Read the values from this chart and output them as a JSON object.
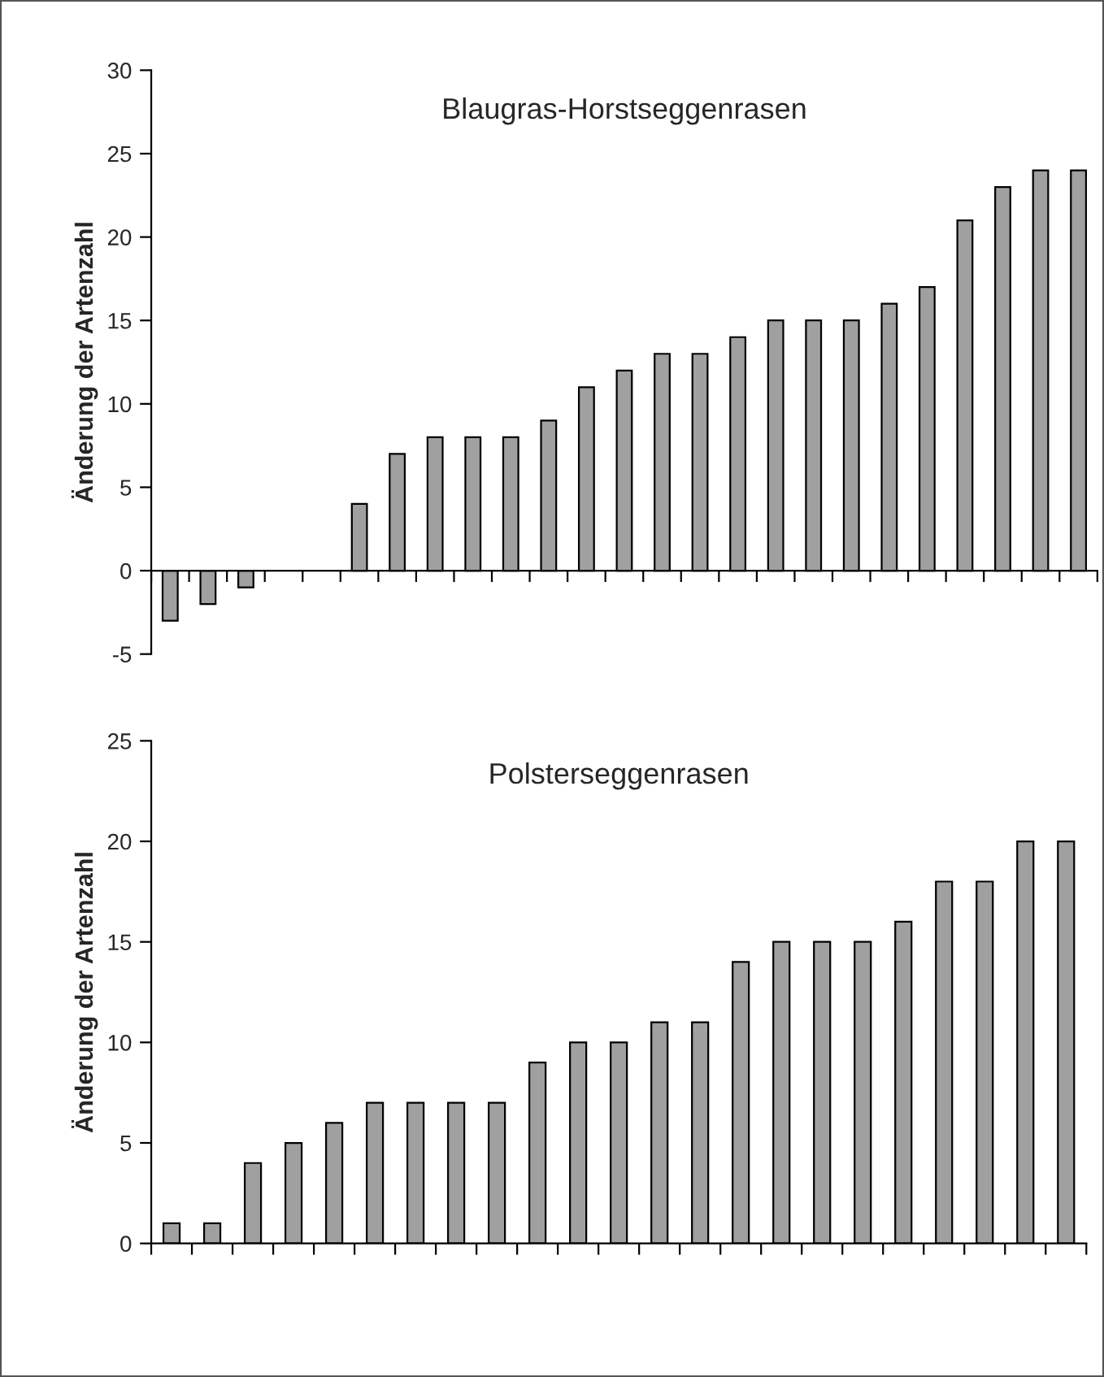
{
  "chart_data": [
    {
      "type": "bar",
      "title": "Blaugras-Horstseggenrasen",
      "ylabel": "Änderung der Artenzahl",
      "categories": [
        null,
        null,
        null,
        null,
        null,
        null,
        null,
        null,
        null,
        null,
        null,
        null,
        null,
        null,
        null,
        null,
        null,
        null,
        null,
        null,
        null,
        null,
        null,
        null,
        null
      ],
      "values": [
        -3,
        -2,
        -1,
        null,
        null,
        4,
        7,
        8,
        8,
        8,
        9,
        11,
        12,
        13,
        13,
        14,
        15,
        15,
        15,
        16,
        17,
        21,
        23,
        24,
        24
      ],
      "color": "#a0a0a0",
      "ylim": [
        -5,
        30
      ],
      "yticks": [
        -5,
        0,
        5,
        10,
        15,
        20,
        25,
        30
      ]
    },
    {
      "type": "bar",
      "title": "Polsterseggenrasen",
      "ylabel": "Änderung der Artenzahl",
      "categories": [
        null,
        null,
        null,
        null,
        null,
        null,
        null,
        null,
        null,
        null,
        null,
        null,
        null,
        null,
        null,
        null,
        null,
        null,
        null,
        null,
        null,
        null,
        null
      ],
      "values": [
        1,
        1,
        4,
        5,
        6,
        7,
        7,
        7,
        7,
        9,
        10,
        10,
        11,
        11,
        14,
        15,
        15,
        15,
        16,
        18,
        18,
        20,
        20
      ],
      "color": "#a0a0a0",
      "ylim": [
        0,
        25
      ],
      "yticks": [
        0,
        5,
        10,
        15,
        20,
        25
      ]
    }
  ]
}
